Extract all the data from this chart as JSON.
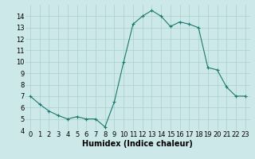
{
  "x": [
    0,
    1,
    2,
    3,
    4,
    5,
    6,
    7,
    8,
    9,
    10,
    11,
    12,
    13,
    14,
    15,
    16,
    17,
    18,
    19,
    20,
    21,
    22,
    23
  ],
  "y": [
    7.0,
    6.3,
    5.7,
    5.3,
    5.0,
    5.2,
    5.0,
    5.0,
    4.3,
    6.5,
    10.0,
    13.3,
    14.0,
    14.5,
    14.0,
    13.1,
    13.5,
    13.3,
    13.0,
    9.5,
    9.3,
    7.8,
    7.0,
    7.0
  ],
  "xlabel": "Humidex (Indice chaleur)",
  "xlim": [
    -0.5,
    23.5
  ],
  "ylim": [
    4,
    15
  ],
  "yticks": [
    4,
    5,
    6,
    7,
    8,
    9,
    10,
    11,
    12,
    13,
    14
  ],
  "xticks": [
    0,
    1,
    2,
    3,
    4,
    5,
    6,
    7,
    8,
    9,
    10,
    11,
    12,
    13,
    14,
    15,
    16,
    17,
    18,
    19,
    20,
    21,
    22,
    23
  ],
  "line_color": "#1a7a6e",
  "bg_color": "#cce8e8",
  "grid_color": "#aacfcf",
  "xlabel_fontsize": 7,
  "tick_fontsize": 6
}
